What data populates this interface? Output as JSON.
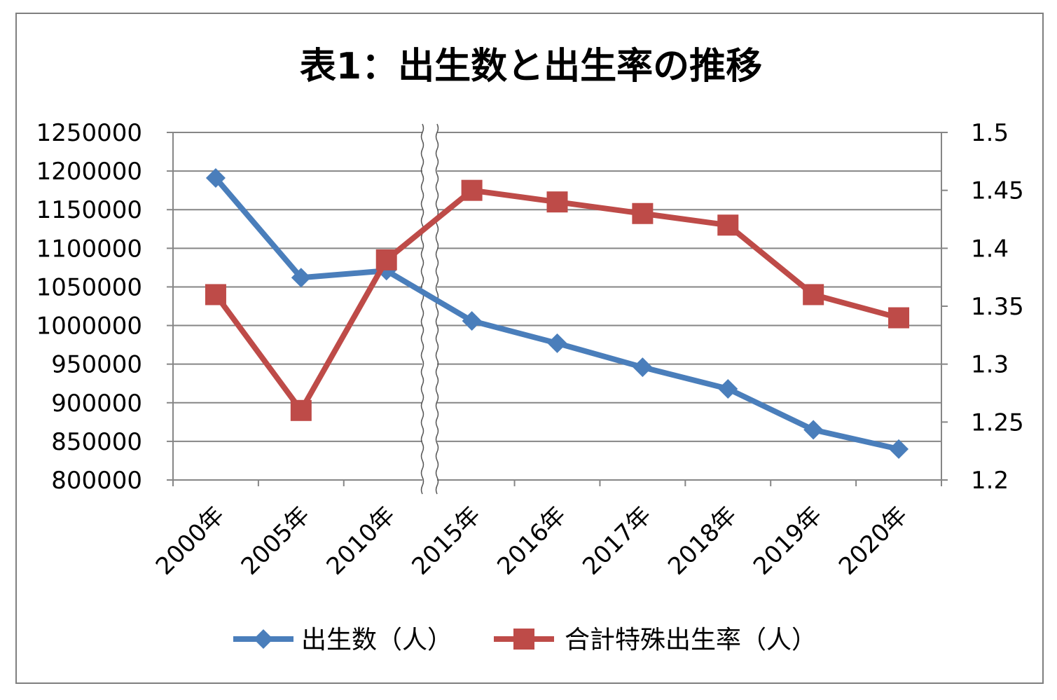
{
  "chart_data": {
    "type": "line",
    "title": "表1：出生数と出生率の推移",
    "categories": [
      "2000年",
      "2005年",
      "2010年",
      "2015年",
      "2016年",
      "2017年",
      "2018年",
      "2019年",
      "2020年"
    ],
    "series": [
      {
        "name": "出生数（人）",
        "axis": "left",
        "color": "#4a7ebb",
        "marker": "diamond",
        "values": [
          1191000,
          1062000,
          1071000,
          1006000,
          977000,
          946000,
          918000,
          865000,
          840000
        ]
      },
      {
        "name": "合計特殊出生率（人）",
        "axis": "right",
        "color": "#be4b48",
        "marker": "square",
        "values": [
          1.36,
          1.26,
          1.39,
          1.45,
          1.44,
          1.43,
          1.42,
          1.36,
          1.34
        ]
      }
    ],
    "y_left": {
      "ylim": [
        800000,
        1250000
      ],
      "ticks": [
        "1250000",
        "1200000",
        "1150000",
        "1100000",
        "1050000",
        "1000000",
        "950000",
        "900000",
        "850000",
        "800000"
      ]
    },
    "y_right": {
      "ylim": [
        1.2,
        1.5
      ],
      "ticks": [
        "1.5",
        "1.45",
        "1.4",
        "1.35",
        "1.3",
        "1.25",
        "1.2"
      ]
    },
    "axis_break": "between 2010年 and 2015年",
    "grid": true,
    "legend_position": "bottom"
  }
}
